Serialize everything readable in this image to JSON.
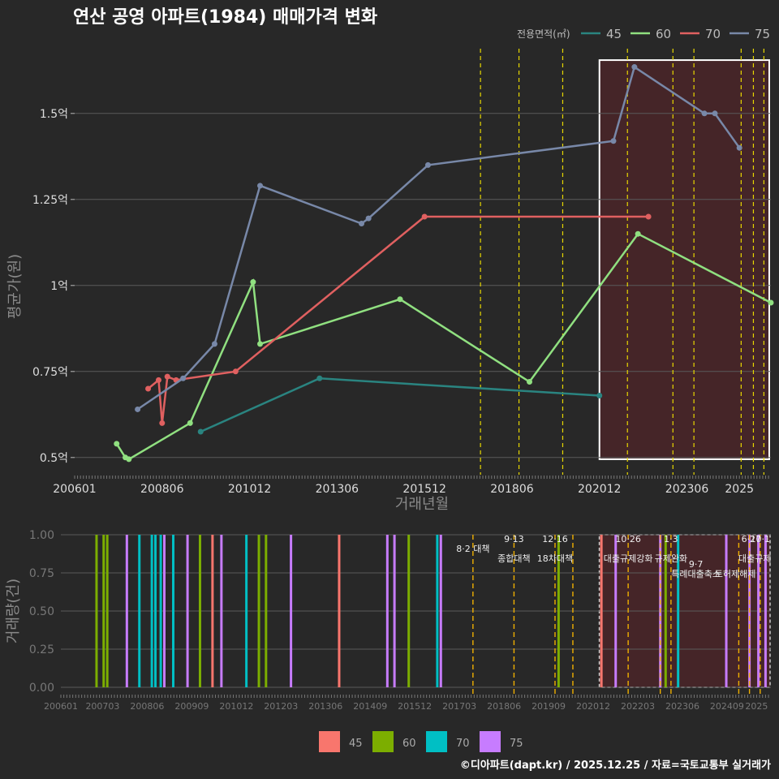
{
  "chart_data": [
    {
      "type": "line",
      "title": "연산 공영 아파트(1984) 매매가격 변화",
      "xlabel": "거래년월",
      "ylabel": "평균가(원)",
      "x_ticks": [
        "200601",
        "200806",
        "201012",
        "201306",
        "201512",
        "201806",
        "202012",
        "202306",
        "2025"
      ],
      "y_ticks": [
        "0.5억",
        "0.75억",
        "1억",
        "1.25억",
        "1.5억"
      ],
      "y_tick_values": [
        0.5,
        0.75,
        1.0,
        1.25,
        1.5
      ],
      "ylim": [
        0.45,
        1.7
      ],
      "xlim": [
        2006.0,
        2025.9
      ],
      "legend_title": "전용면적(㎡)",
      "series": [
        {
          "name": "45",
          "color": "#2a8480",
          "points": [
            [
              2009.6,
              0.575
            ],
            [
              2013.0,
              0.73
            ],
            [
              2021.0,
              0.68
            ]
          ]
        },
        {
          "name": "60",
          "color": "#90e080",
          "points": [
            [
              2007.2,
              0.54
            ],
            [
              2007.45,
              0.5
            ],
            [
              2007.55,
              0.495
            ],
            [
              2009.3,
              0.6
            ],
            [
              2011.1,
              1.01
            ],
            [
              2011.3,
              0.83
            ],
            [
              2015.3,
              0.96
            ],
            [
              2019.0,
              0.72
            ],
            [
              2022.1,
              1.15
            ],
            [
              2025.9,
              0.95
            ]
          ]
        },
        {
          "name": "70",
          "color": "#e06060",
          "points": [
            [
              2008.1,
              0.7
            ],
            [
              2008.4,
              0.725
            ],
            [
              2008.5,
              0.6
            ],
            [
              2008.65,
              0.735
            ],
            [
              2008.9,
              0.725
            ],
            [
              2010.6,
              0.75
            ],
            [
              2016.0,
              1.2
            ],
            [
              2022.4,
              1.2
            ]
          ]
        },
        {
          "name": "75",
          "color": "#7888a8",
          "points": [
            [
              2007.8,
              0.64
            ],
            [
              2009.1,
              0.73
            ],
            [
              2010.0,
              0.83
            ],
            [
              2011.3,
              1.29
            ],
            [
              2014.2,
              1.18
            ],
            [
              2014.4,
              1.195
            ],
            [
              2016.1,
              1.35
            ],
            [
              2021.4,
              1.42
            ],
            [
              2022.0,
              1.635
            ],
            [
              2024.0,
              1.5
            ],
            [
              2024.3,
              1.5
            ],
            [
              2025.0,
              1.4
            ]
          ]
        }
      ],
      "policy_lines": [
        2017.6,
        2018.7,
        2019.95,
        2021.8,
        2023.1,
        2023.7,
        2025.05,
        2025.4,
        2025.7
      ],
      "highlight_range": [
        2021.0,
        2025.9
      ]
    },
    {
      "type": "bar",
      "ylabel": "거래량(건)",
      "y_ticks": [
        "0.00",
        "0.25",
        "0.50",
        "0.75",
        "1.00"
      ],
      "y_tick_values": [
        0,
        0.25,
        0.5,
        0.75,
        1.0
      ],
      "x_ticks": [
        "200601",
        "200703",
        "200806",
        "200909",
        "201012",
        "201203",
        "201306",
        "201409",
        "201512",
        "201703",
        "201806",
        "201909",
        "202012",
        "202203",
        "202306",
        "202409",
        "2025"
      ],
      "legend": [
        "45",
        "60",
        "70",
        "75"
      ],
      "legend_colors": [
        "#f8766d",
        "#7cae00",
        "#00bfc4",
        "#c77cff"
      ],
      "xlim": [
        2006.0,
        2025.9
      ],
      "bars": [
        {
          "x": 2007.0,
          "series": "60"
        },
        {
          "x": 2007.2,
          "series": "60"
        },
        {
          "x": 2007.3,
          "series": "60"
        },
        {
          "x": 2007.85,
          "series": "75"
        },
        {
          "x": 2008.2,
          "series": "70"
        },
        {
          "x": 2008.55,
          "series": "70"
        },
        {
          "x": 2008.65,
          "series": "70"
        },
        {
          "x": 2008.8,
          "series": "70"
        },
        {
          "x": 2008.9,
          "series": "75"
        },
        {
          "x": 2009.15,
          "series": "70"
        },
        {
          "x": 2009.55,
          "series": "75"
        },
        {
          "x": 2009.9,
          "series": "60"
        },
        {
          "x": 2010.25,
          "series": "45"
        },
        {
          "x": 2010.5,
          "series": "75"
        },
        {
          "x": 2011.2,
          "series": "70"
        },
        {
          "x": 2011.55,
          "series": "60"
        },
        {
          "x": 2011.75,
          "series": "60"
        },
        {
          "x": 2012.45,
          "series": "75"
        },
        {
          "x": 2013.8,
          "series": "45"
        },
        {
          "x": 2015.15,
          "series": "75"
        },
        {
          "x": 2015.35,
          "series": "75"
        },
        {
          "x": 2015.75,
          "series": "60"
        },
        {
          "x": 2016.55,
          "series": "70"
        },
        {
          "x": 2016.65,
          "series": "75"
        },
        {
          "x": 2019.95,
          "series": "60"
        },
        {
          "x": 2021.15,
          "series": "45"
        },
        {
          "x": 2021.55,
          "series": "75"
        },
        {
          "x": 2022.8,
          "series": "75"
        },
        {
          "x": 2022.95,
          "series": "60"
        },
        {
          "x": 2023.3,
          "series": "70"
        },
        {
          "x": 2024.65,
          "series": "75"
        },
        {
          "x": 2025.3,
          "series": "75"
        },
        {
          "x": 2025.55,
          "series": "75"
        },
        {
          "x": 2025.75,
          "series": "75"
        }
      ],
      "policy_lines": [
        2017.55,
        2018.7,
        2019.85,
        2020.35,
        2021.9,
        2022.8,
        2023.1,
        2025.0,
        2025.3,
        2025.6
      ],
      "policy_labels": [
        {
          "x": 2017.55,
          "row": 0,
          "text": "8·2 대책"
        },
        {
          "x": 2018.7,
          "row": -1,
          "text": "9·13"
        },
        {
          "x": 2018.7,
          "row": 1,
          "text": "종합대책"
        },
        {
          "x": 2019.85,
          "row": -1,
          "text": "12·16"
        },
        {
          "x": 2019.85,
          "row": 1,
          "text": "18차대책"
        },
        {
          "x": 2021.9,
          "row": -1,
          "text": "10·26"
        },
        {
          "x": 2021.9,
          "row": 1,
          "text": "대출규제강화"
        },
        {
          "x": 2023.1,
          "row": -1,
          "text": "1·3"
        },
        {
          "x": 2023.1,
          "row": 1,
          "text": "규제완화"
        },
        {
          "x": 2023.8,
          "row": 1.6,
          "text": "9·7"
        },
        {
          "x": 2023.8,
          "row": 2.6,
          "text": "특례대출축소"
        },
        {
          "x": 2024.9,
          "row": 2.6,
          "text": "토허제해제"
        },
        {
          "x": 2025.35,
          "row": -1,
          "text": "6·27"
        },
        {
          "x": 2025.6,
          "row": -1,
          "text": "10·1"
        },
        {
          "x": 2025.45,
          "row": 1,
          "text": "대출규제"
        }
      ],
      "highlight_range": [
        2021.0,
        2025.9
      ]
    }
  ],
  "caption": "©디아파트(dapt.kr) / 2025.12.25 / 자료=국토교통부 실거래가"
}
